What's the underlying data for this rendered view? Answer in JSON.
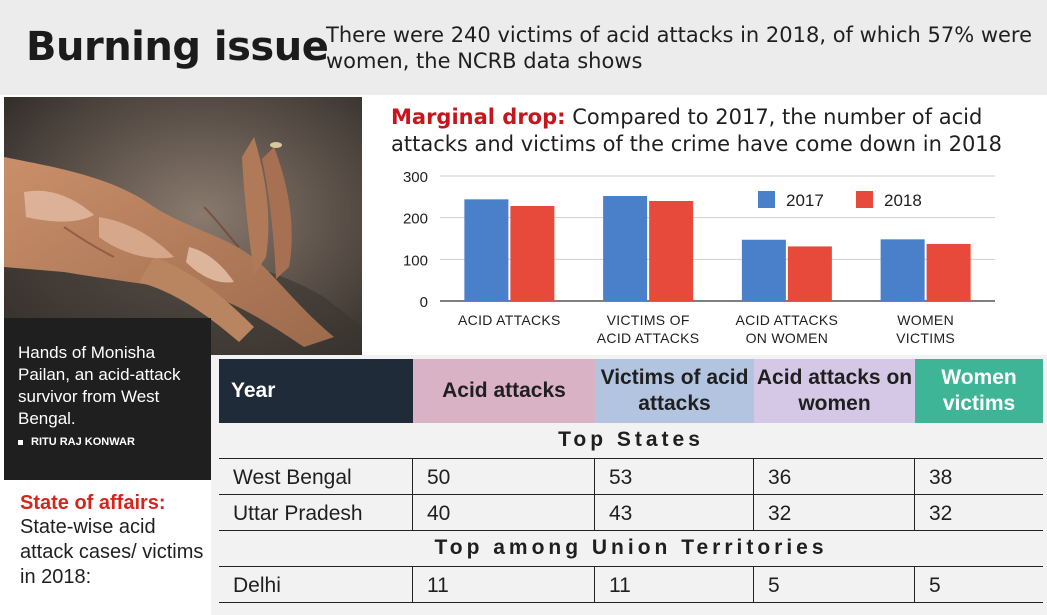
{
  "header": {
    "title": "Burning issue",
    "subtitle": "There were 240 victims of acid attacks in 2018, of which 57% were women, the NCRB data shows"
  },
  "photo": {
    "caption": "Hands of Monisha Pailan, an acid-attack survivor from West Bengal.",
    "credit": "RITU RAJ KONWAR"
  },
  "state_note": {
    "title": "State of affairs:",
    "text": "State-wise acid attack cases/ victims in 2018:"
  },
  "chart_heading": {
    "lead": "Marginal drop:",
    "text": " Compared to 2017, the number of acid attacks and victims of the crime have come down in 2018"
  },
  "chart_data": {
    "type": "bar",
    "categories": [
      [
        "ACID ATTACKS"
      ],
      [
        "VICTIMS OF",
        "ACID ATTACKS"
      ],
      [
        "ACID ATTACKS",
        "ON WOMEN"
      ],
      [
        "WOMEN",
        "VICTIMS"
      ]
    ],
    "series": [
      {
        "name": "2017",
        "color": "#4a7fc9",
        "values": [
          244,
          252,
          147,
          148
        ]
      },
      {
        "name": "2018",
        "color": "#e74a3b",
        "values": [
          228,
          240,
          131,
          137
        ]
      }
    ],
    "ylim": [
      0,
      300
    ],
    "yticks": [
      "0",
      "100",
      "200",
      "300"
    ],
    "grid": true,
    "legend": "top-right"
  },
  "table": {
    "headers": [
      {
        "label": "Year",
        "bg": "#1f2b39",
        "color": "#ffffff",
        "align": "left"
      },
      {
        "label": "Acid attacks",
        "bg": "#dab2c6",
        "color": "#1f1f1f"
      },
      {
        "label": "Victims of acid attacks",
        "bg": "#b2c4e0",
        "color": "#1f1f1f"
      },
      {
        "label": "Acid attacks on women",
        "bg": "#d4c8e6",
        "color": "#1f1f1f"
      },
      {
        "label": "Women victims",
        "bg": "#3fb597",
        "color": "#ffffff"
      }
    ],
    "section_states": "Top States",
    "states": [
      {
        "name": "West Bengal",
        "values": [
          "50",
          "53",
          "36",
          "38"
        ]
      },
      {
        "name": "Uttar Pradesh",
        "values": [
          "40",
          "43",
          "32",
          "32"
        ]
      }
    ],
    "section_uts": "Top among Union Territories",
    "uts": [
      {
        "name": "Delhi",
        "values": [
          "11",
          "11",
          "5",
          "5"
        ]
      }
    ]
  }
}
